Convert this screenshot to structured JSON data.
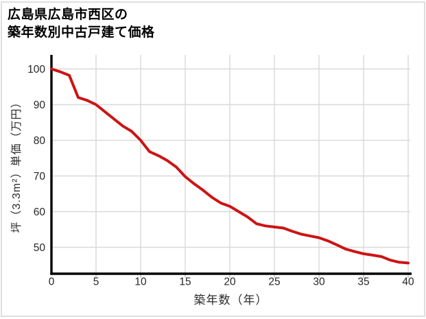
{
  "header": {
    "title_line1": "広島県広島市西区の",
    "title_line2": "築年数別中古戸建て価格"
  },
  "chart_data": {
    "type": "line",
    "title": "広島県広島市西区の築年数別中古戸建て価格",
    "xlabel": "築年数（年）",
    "ylabel": "坪（3.3m²）単価（万円）",
    "x": [
      0,
      1,
      2,
      3,
      4,
      5,
      6,
      7,
      8,
      9,
      10,
      11,
      12,
      13,
      14,
      15,
      16,
      17,
      18,
      19,
      20,
      21,
      22,
      23,
      24,
      25,
      26,
      27,
      28,
      29,
      30,
      31,
      32,
      33,
      34,
      35,
      36,
      37,
      38,
      39,
      40
    ],
    "y": [
      100,
      99.2,
      98.2,
      92,
      91.2,
      90,
      88,
      86,
      84,
      82.5,
      80,
      76.8,
      75.7,
      74.3,
      72.5,
      69.8,
      67.8,
      66,
      64,
      62.4,
      61.5,
      60,
      58.5,
      56.6,
      56,
      55.7,
      55.4,
      54.5,
      53.7,
      53.2,
      52.7,
      51.8,
      50.7,
      49.5,
      48.8,
      48.2,
      47.8,
      47.4,
      46.4,
      45.8,
      45.6
    ],
    "x_ticks": [
      0,
      5,
      10,
      15,
      20,
      25,
      30,
      35,
      40
    ],
    "y_ticks": [
      50,
      60,
      70,
      80,
      90,
      100
    ],
    "xlim": [
      0,
      40
    ],
    "ylim": [
      42,
      104
    ],
    "grid": true,
    "legend": false,
    "colors": {
      "line": "#cc1414",
      "grid": "#d9d9d9",
      "axis": "#000000",
      "tick_label": "#262626",
      "tick_mark": "#c8c8c8"
    }
  }
}
